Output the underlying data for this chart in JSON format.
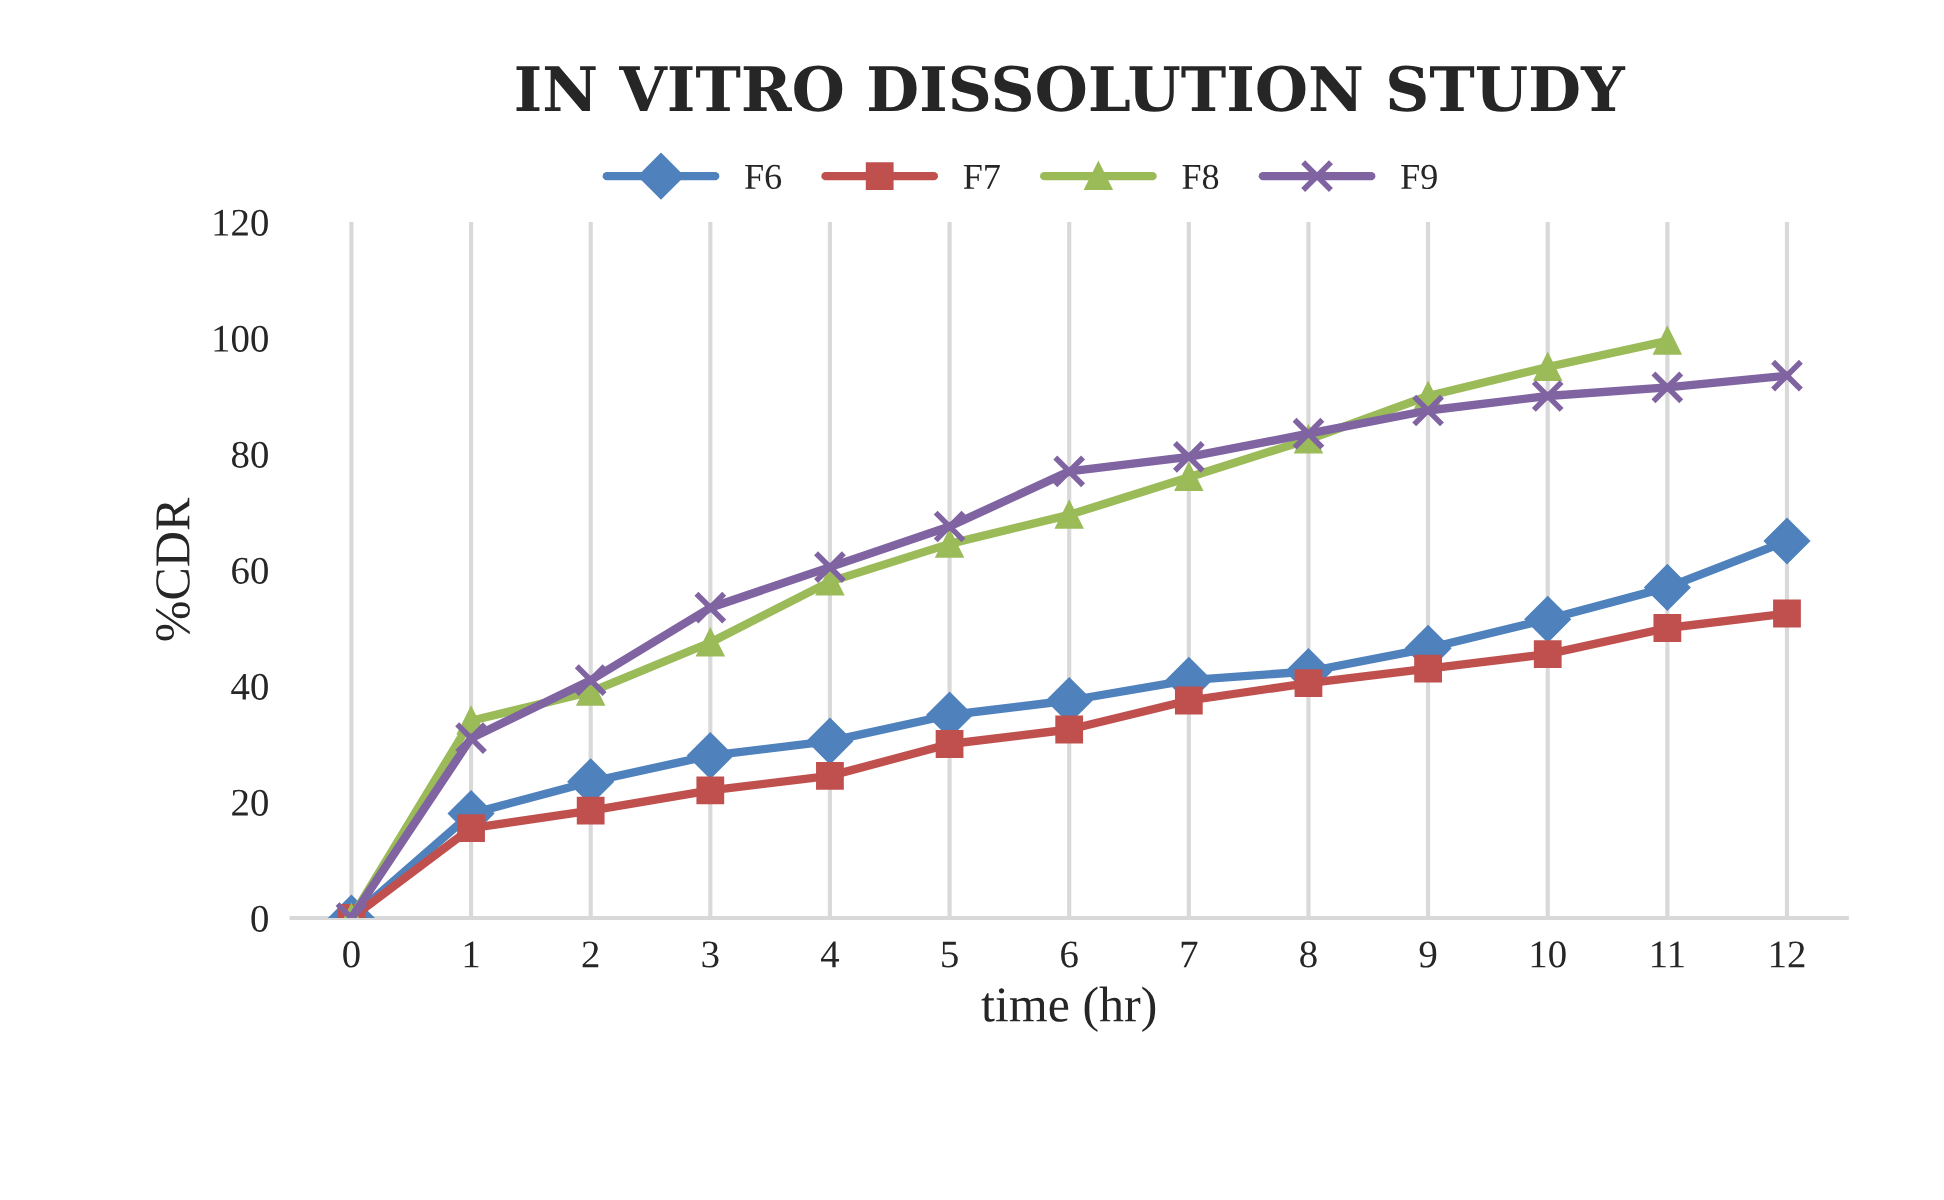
{
  "chart_data": {
    "type": "line",
    "title": "IN VITRO DISSOLUTION STUDY",
    "xlabel": "time (hr)",
    "ylabel": "%CDR",
    "categories": [
      "0",
      "1",
      "2",
      "3",
      "4",
      "5",
      "6",
      "7",
      "8",
      "9",
      "10",
      "11",
      "12"
    ],
    "series": [
      {
        "name": "F6",
        "color": "#4f81bd",
        "marker": "diamond",
        "values": [
          0,
          18,
          23.5,
          28,
          30.5,
          35,
          37.5,
          41,
          42.5,
          46.5,
          51.5,
          57,
          65
        ]
      },
      {
        "name": "F7",
        "color": "#c0504d",
        "marker": "square",
        "values": [
          0,
          15.5,
          18.5,
          22,
          24.5,
          30,
          32.5,
          37.5,
          40.5,
          43,
          45.5,
          50,
          52.5
        ]
      },
      {
        "name": "F8",
        "color": "#9bbb59",
        "marker": "triangle",
        "values": [
          0,
          34,
          39,
          47.5,
          58,
          64.5,
          69.5,
          76,
          82.5,
          90,
          95,
          99.5,
          null
        ]
      },
      {
        "name": "F9",
        "color": "#8064a2",
        "marker": "cross",
        "values": [
          0,
          31,
          41,
          53.5,
          60.5,
          67.5,
          77,
          79.5,
          83.5,
          87.5,
          90,
          91.5,
          93.5
        ]
      }
    ],
    "ylim": [
      0,
      120
    ],
    "yticks": [
      0,
      20,
      40,
      60,
      80,
      100,
      120
    ],
    "grid": "x",
    "legend": "top",
    "line_style": "solid"
  }
}
